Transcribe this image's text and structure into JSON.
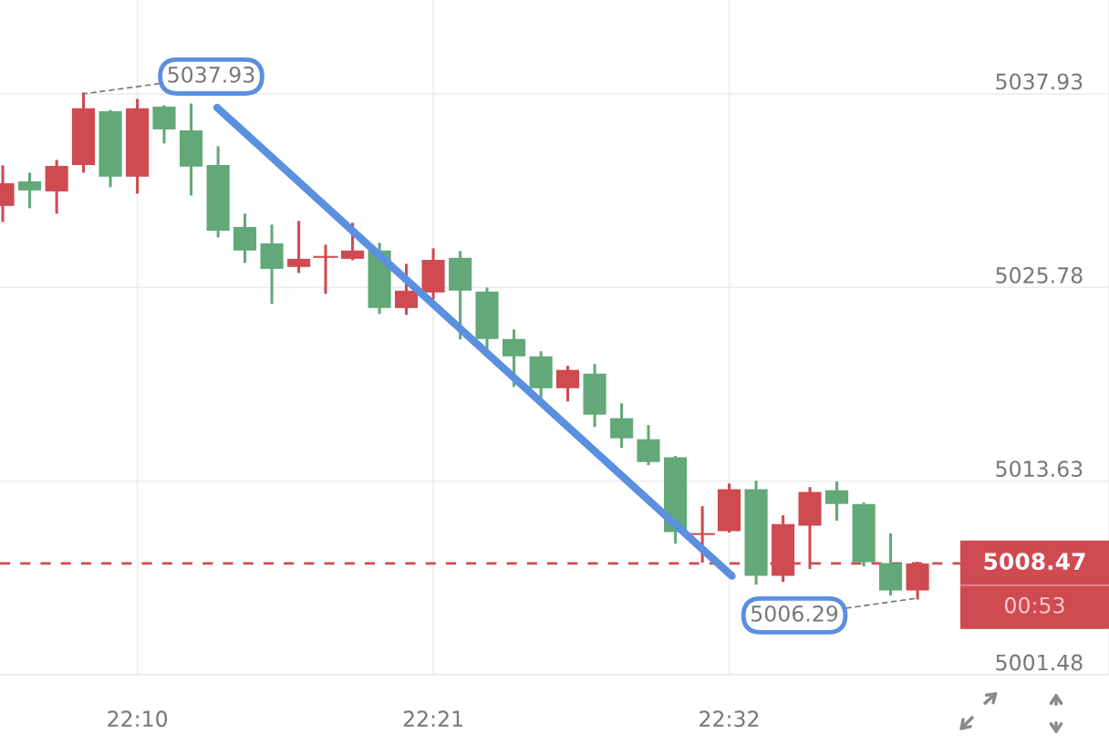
{
  "chart_data": {
    "type": "candlestick",
    "x": [
      22.0833,
      22.1,
      22.1167,
      22.1333,
      22.15,
      22.1667,
      22.1833,
      22.2,
      22.2167,
      22.2333,
      22.25,
      22.2667,
      22.2833,
      22.3,
      22.3167,
      22.3333,
      22.35,
      22.3667,
      22.3833,
      22.4,
      22.4167,
      22.4333,
      22.45,
      22.4667,
      22.4833,
      22.5,
      22.5167,
      22.5333,
      22.55,
      22.5667,
      22.5833,
      22.6,
      22.6167,
      22.6333,
      22.65
    ],
    "ohlc": [
      [
        5030.9,
        5033.36,
        5029.98,
        5032.33
      ],
      [
        5032.44,
        5032.9,
        5030.84,
        5031.87
      ],
      [
        5031.81,
        5033.7,
        5030.5,
        5033.41
      ],
      [
        5033.47,
        5037.93,
        5033.07,
        5037.02
      ],
      [
        5036.84,
        5036.84,
        5032.16,
        5032.73
      ],
      [
        5032.73,
        5037.53,
        5031.76,
        5037.02
      ],
      [
        5037.13,
        5037.13,
        5034.9,
        5035.7
      ],
      [
        5035.64,
        5037.24,
        5031.64,
        5033.36
      ],
      [
        5033.47,
        5034.56,
        5029.01,
        5029.35
      ],
      [
        5029.58,
        5030.33,
        5027.41,
        5028.1
      ],
      [
        5028.55,
        5029.64,
        5024.84,
        5026.95
      ],
      [
        5027.07,
        5029.87,
        5026.78,
        5027.58
      ],
      [
        5027.7,
        5028.38,
        5025.47,
        5027.7
      ],
      [
        5027.58,
        5029.75,
        5027.58,
        5028.1
      ],
      [
        5028.1,
        5028.5,
        5024.21,
        5024.49
      ],
      [
        5024.49,
        5027.18,
        5024.15,
        5025.58
      ],
      [
        5025.47,
        5028.15,
        5025.12,
        5027.52
      ],
      [
        5027.64,
        5027.98,
        5022.61,
        5025.58
      ],
      [
        5025.52,
        5025.69,
        5021.98,
        5022.55
      ],
      [
        5022.55,
        5023.06,
        5019.63,
        5021.46
      ],
      [
        5021.46,
        5021.69,
        5018.95,
        5019.46
      ],
      [
        5019.46,
        5020.78,
        5018.72,
        5020.61
      ],
      [
        5020.38,
        5020.89,
        5017.12,
        5017.8
      ],
      [
        5017.58,
        5018.43,
        5015.8,
        5016.32
      ],
      [
        5016.26,
        5017.06,
        5014.72,
        5014.83
      ],
      [
        5015.12,
        5015.12,
        5009.8,
        5010.43
      ],
      [
        5010.31,
        5011.97,
        5008.6,
        5010.31
      ],
      [
        5010.49,
        5013.4,
        5010.49,
        5013.12
      ],
      [
        5013.12,
        5013.57,
        5007.23,
        5007.69
      ],
      [
        5007.69,
        5011.4,
        5007.4,
        5010.94
      ],
      [
        5010.83,
        5013.17,
        5008.2,
        5012.95
      ],
      [
        5013.06,
        5013.52,
        5011.23,
        5012.2
      ],
      [
        5012.2,
        5012.2,
        5008.37,
        5008.54
      ],
      [
        5008.49,
        5010.26,
        5006.54,
        5006.77
      ],
      [
        5006.77,
        5008.49,
        5006.29,
        5008.47
      ]
    ],
    "colors": [
      "#cf4a51",
      "#62a878",
      "#cf4a51",
      "#cf4a51",
      "#62a878",
      "#cf4a51",
      "#62a878",
      "#62a878",
      "#62a878",
      "#62a878",
      "#62a878",
      "#cf4a51",
      "#cf4a51",
      "#cf4a51",
      "#62a878",
      "#cf4a51",
      "#cf4a51",
      "#62a878",
      "#62a878",
      "#62a878",
      "#62a878",
      "#cf4a51",
      "#62a878",
      "#62a878",
      "#62a878",
      "#62a878",
      "#cf4a51",
      "#cf4a51",
      "#62a878",
      "#cf4a51",
      "#cf4a51",
      "#62a878",
      "#62a878",
      "#62a878",
      "#cf4a51"
    ],
    "series": [
      {
        "type": "line",
        "color": "#5b8fe0",
        "x": [
          22.2161,
          22.535
        ],
        "values": [
          5037.07,
          5007.68
        ]
      }
    ],
    "xlim": [
      22.0816,
      22.7686
    ],
    "xticks": [
      {
        "value": 22.1667,
        "label": "22:10"
      },
      {
        "value": 22.35,
        "label": "22:21"
      },
      {
        "value": 22.5333,
        "label": "22:32"
      }
    ],
    "ylim": [
      5001.48,
      5043.82
    ],
    "yticks": [
      5001.48,
      5013.63,
      5025.78,
      5037.93
    ],
    "grid": true,
    "ref_lines": [
      {
        "axis": "y",
        "value": 5008.47,
        "label": "5008.47",
        "color": "#cf4a51",
        "line_style": "dashed"
      }
    ],
    "annotations": [
      {
        "text": "5037.93",
        "x": 22.1333,
        "y": 5037.93
      },
      {
        "text": "5006.29",
        "x": 22.65,
        "y": 5006.29
      },
      "00:53"
    ]
  }
}
